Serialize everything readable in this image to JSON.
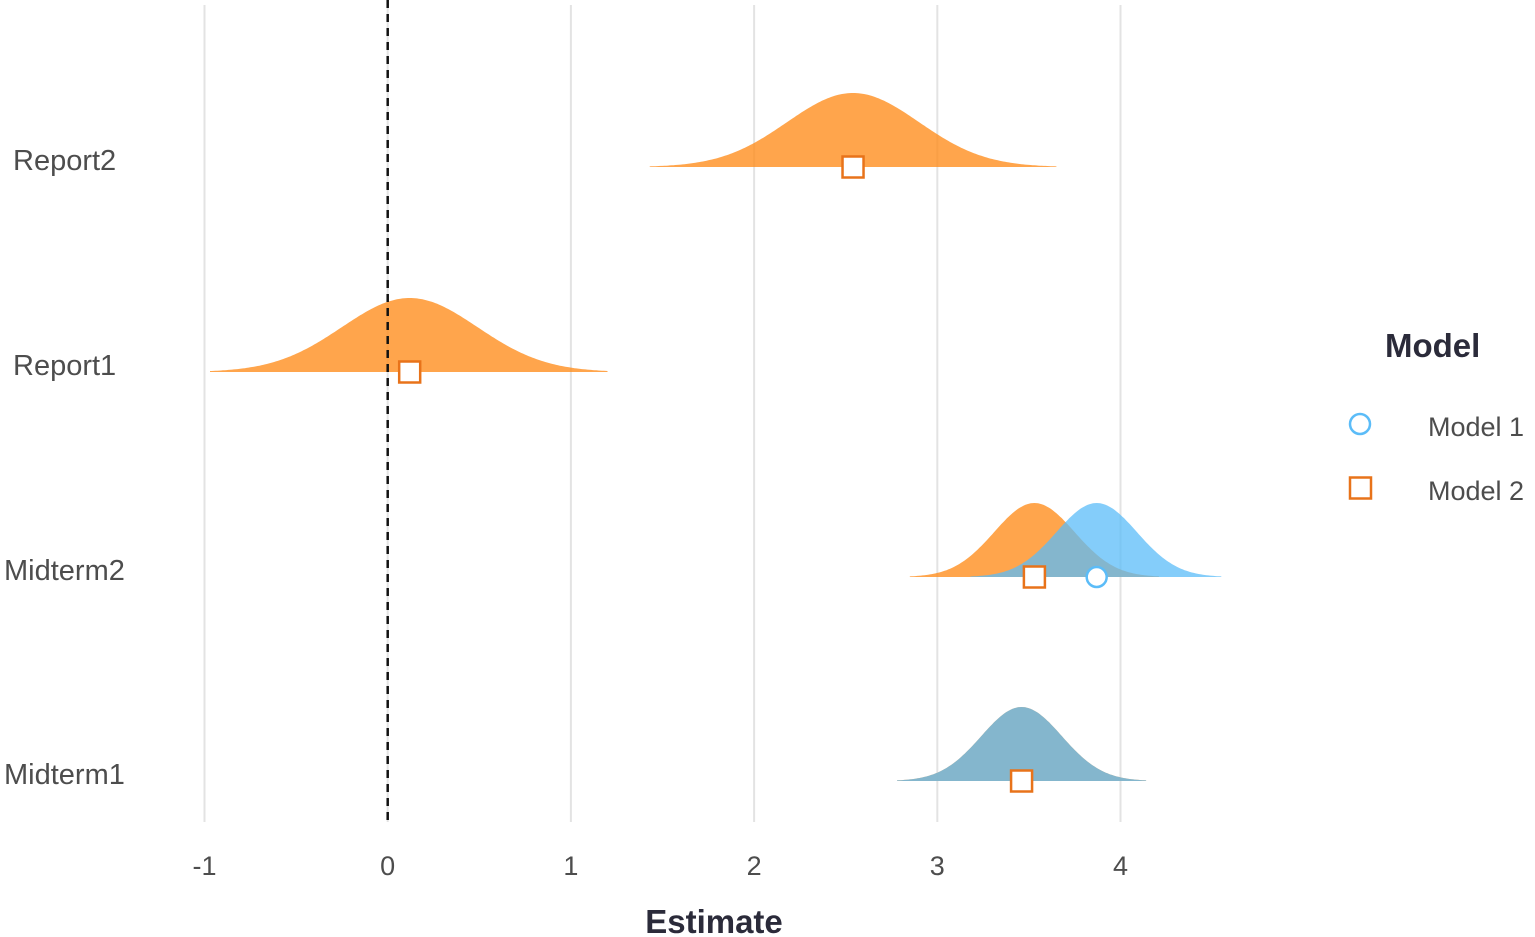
{
  "chart_data": {
    "type": "density-ridge-forest",
    "xlabel": "Estimate",
    "xlim": [
      -1.0,
      4.0
    ],
    "x_ticks": [
      -1,
      0,
      1,
      2,
      3,
      4
    ],
    "x_tick_labels": [
      "-1",
      "0",
      "1",
      "2",
      "3",
      "4"
    ],
    "reference_line": {
      "x": 0,
      "style": "dashed"
    },
    "grid": "vertical-major",
    "categories": [
      "Report2",
      "Report1",
      "Midterm2",
      "Midterm1"
    ],
    "legend": {
      "title": "Model",
      "position": "right"
    },
    "series": [
      {
        "name": "Model 1",
        "color": "#5bbcf8",
        "marker": "circle",
        "estimates": [
          {
            "term": "Midterm2",
            "estimate": 3.87,
            "sd": 0.22,
            "lower": 3.18,
            "upper": 4.55
          },
          {
            "term": "Midterm1",
            "estimate": 3.46,
            "sd": 0.22,
            "lower": 2.78,
            "upper": 4.14
          }
        ]
      },
      {
        "name": "Model 2",
        "color": "#ff8c1a",
        "marker": "square",
        "estimates": [
          {
            "term": "Report2",
            "estimate": 2.54,
            "sd": 0.36,
            "lower": 1.43,
            "upper": 3.65
          },
          {
            "term": "Report1",
            "estimate": 0.12,
            "sd": 0.37,
            "lower": -0.97,
            "upper": 1.2
          },
          {
            "term": "Midterm2",
            "estimate": 3.53,
            "sd": 0.22,
            "lower": 2.85,
            "upper": 4.21
          },
          {
            "term": "Midterm1",
            "estimate": 3.46,
            "sd": 0.22,
            "lower": 2.78,
            "upper": 4.14
          }
        ]
      }
    ]
  }
}
